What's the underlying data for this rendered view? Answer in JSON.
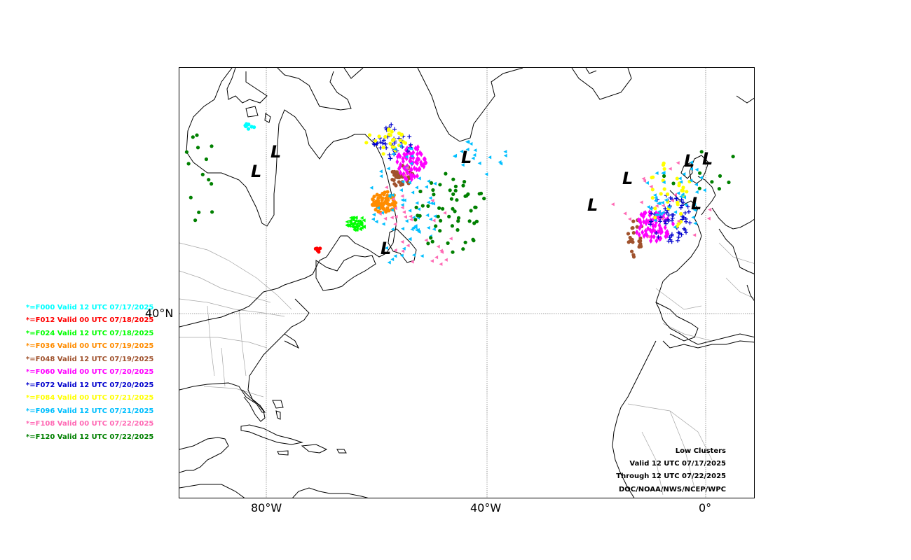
{
  "map": {
    "axes": {
      "lon_ticks": [
        "80°W",
        "40°W",
        "0°"
      ],
      "lat_ticks": [
        "40°N"
      ]
    },
    "info_box": {
      "title": "Low Clusters",
      "valid": "Valid 12 UTC 07/17/2025",
      "through": "Through 12 UTC 07/22/2025",
      "source": "DOC/NOAA/NWS/NCEP/WPC"
    },
    "legend": [
      {
        "label": "*=F000 Valid 12 UTC 07/17/2025",
        "color": "#00ffff"
      },
      {
        "label": "*=F012 Valid 00 UTC 07/18/2025",
        "color": "#ff0000"
      },
      {
        "label": "*=F024 Valid 12 UTC 07/18/2025",
        "color": "#00ff00"
      },
      {
        "label": "*=F036 Valid 00 UTC 07/19/2025",
        "color": "#ff8c00"
      },
      {
        "label": "*=F048 Valid 12 UTC 07/19/2025",
        "color": "#a0522d"
      },
      {
        "label": "*=F060 Valid 00 UTC 07/20/2025",
        "color": "#ff00ff"
      },
      {
        "label": "*=F072 Valid 12 UTC 07/20/2025",
        "color": "#0000cd"
      },
      {
        "label": "*=F084 Valid 00 UTC 07/21/2025",
        "color": "#ffff00"
      },
      {
        "label": "*=F096 Valid 12 UTC 07/21/2025",
        "color": "#00bfff"
      },
      {
        "label": "*=F108 Valid 00 UTC 07/22/2025",
        "color": "#ff69b4"
      },
      {
        "label": "*=F120 Valid 12 UTC 07/22/2025",
        "color": "#008000"
      }
    ],
    "low_symbol": "L",
    "colors": {
      "coast": "#000000",
      "borders": "#9a9a9a",
      "grid": "#808080"
    }
  }
}
